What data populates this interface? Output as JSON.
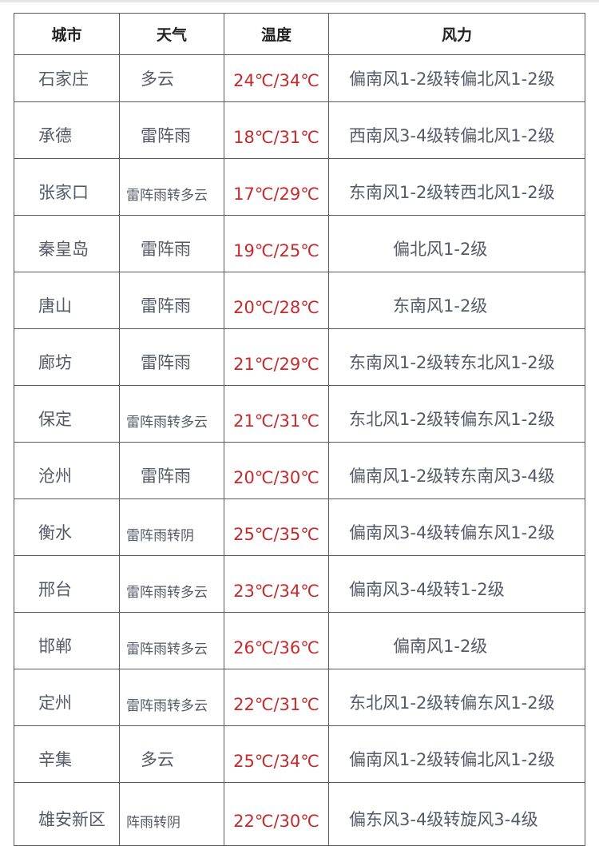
{
  "headers": [
    "城市",
    "天气",
    "温度",
    "风力"
  ],
  "rows": [
    {
      "city": "石家庄",
      "weather": "多云",
      "temp": "24℃/34℃",
      "wind": "偏南风1-2级转偏北风1-2级"
    },
    {
      "city": "承德",
      "weather": "雷阵雨",
      "temp": "18℃/31℃",
      "wind": "西南风3-4级转偏北风1-2级"
    },
    {
      "city": "张家口",
      "weather": "雷阵雨转多云",
      "temp": "17℃/29℃",
      "wind": "东南风1-2级转西北风1-2级"
    },
    {
      "city": "秦皇岛",
      "weather": "雷阵雨",
      "temp": "19℃/25℃",
      "wind": "偏北风1-2级"
    },
    {
      "city": "唐山",
      "weather": "雷阵雨",
      "temp": "20℃/28℃",
      "wind": "东南风1-2级"
    },
    {
      "city": "廊坊",
      "weather": "雷阵雨",
      "temp": "21℃/29℃",
      "wind": "东南风1-2级转东北风1-2级"
    },
    {
      "city": "保定",
      "weather": "雷阵雨转多云",
      "temp": "21℃/31℃",
      "wind": "东北风1-2级转偏东风1-2级"
    },
    {
      "city": "沧州",
      "weather": "雷阵雨",
      "temp": "20℃/30℃",
      "wind": "偏南风1-2级转东南风3-4级"
    },
    {
      "city": "衡水",
      "weather": "雷阵雨转阴",
      "temp": "25℃/35℃",
      "wind": "偏南风3-4级转偏东风1-2级"
    },
    {
      "city": "邢台",
      "weather": "雷阵雨转多云",
      "temp": "23℃/34℃",
      "wind": "偏南风3-4级转1-2级"
    },
    {
      "city": "邯郸",
      "weather": "雷阵雨转多云",
      "temp": "26℃/36℃",
      "wind": "偏南风1-2级"
    },
    {
      "city": "定州",
      "weather": "雷阵雨转多云",
      "temp": "22℃/31℃",
      "wind": "东北风1-2级转偏东风1-2级"
    },
    {
      "city": "辛集",
      "weather": "多云",
      "temp": "25℃/34℃",
      "wind": "偏南风1-2级转偏北风1-2级"
    },
    {
      "city": "雄安新区",
      "weather": "阵雨转阴",
      "temp": "22℃/30℃",
      "wind": "偏东风3-4级转旋风3-4级"
    }
  ],
  "colors": {
    "temperature": "#c62a2a",
    "text": "#555a68",
    "border": "#5a5a5a"
  }
}
